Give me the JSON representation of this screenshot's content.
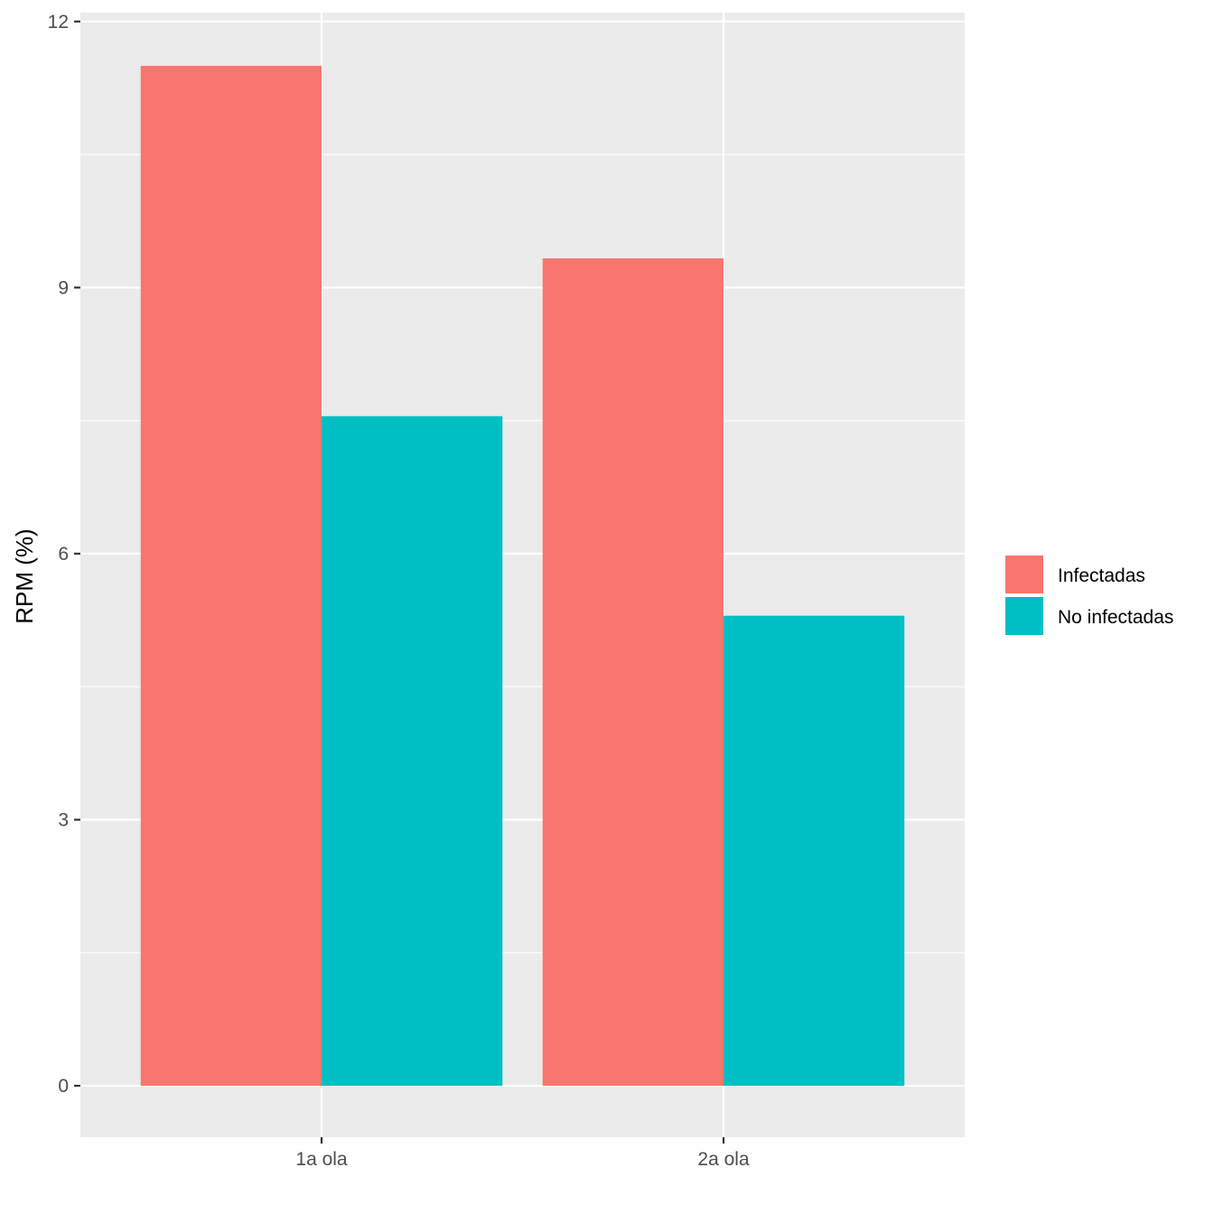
{
  "chart_data": {
    "type": "bar",
    "title": "",
    "xlabel": "",
    "ylabel": "RPM (%)",
    "categories": [
      "1a ola",
      "2a ola"
    ],
    "series": [
      {
        "name": "Infectadas",
        "values": [
          11.5,
          9.33
        ],
        "color": "#F8766D"
      },
      {
        "name": "No infectadas",
        "values": [
          7.55,
          5.3
        ],
        "color": "#00BFC4"
      }
    ],
    "ylim": [
      -0.58,
      12.1
    ],
    "yticks": [
      0,
      3,
      6,
      9,
      12
    ],
    "ytick_labels": [
      "0",
      "3",
      "6",
      "9",
      "12"
    ],
    "y_minor_ticks": [
      1.5,
      4.5,
      7.5,
      10.5
    ],
    "grid": true,
    "panel_background": "#EBEBEB",
    "legend_placement": "right"
  }
}
